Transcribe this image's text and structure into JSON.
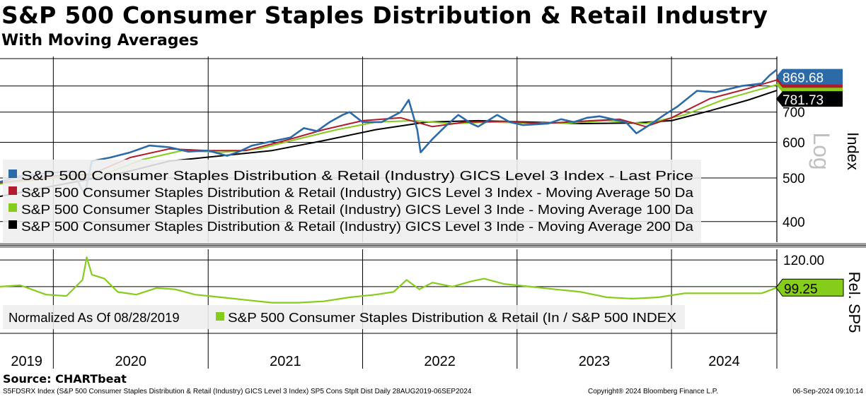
{
  "title": "S&P 500 Consumer Staples Distribution & Retail Industry",
  "subtitle": "With Moving Averages",
  "source": "Source: CHARTbeat",
  "footer": {
    "left": "S5FDSRX Index (S&P 500 Consumer Staples Distribution & Retail (Industry) GICS Level 3 Index) SP5 Cons Stplt Dist  Daily 28AUG2019-06SEP2024",
    "center": "Copyright® 2024 Bloomberg Finance L.P.",
    "right": "06-Sep-2024 09:10:14"
  },
  "colors": {
    "last_price": "#2c6aa8",
    "ma50": "#b01c2e",
    "ma100": "#86cc1a",
    "ma200": "#000000",
    "relative": "#86cc1a",
    "grid": "#000000"
  },
  "chart_data": [
    {
      "type": "line",
      "panel": "upper",
      "scale": "log",
      "ylim": [
        360,
        930
      ],
      "ylabel": "Index",
      "scale_label": "Log",
      "yticks": [
        400,
        500,
        600,
        700,
        800
      ],
      "grid": true,
      "legend_position": "left",
      "x_start": "2019-08-28",
      "x_end": "2024-09-06",
      "x_tick_labels": [
        "2019",
        "2020",
        "2021",
        "2022",
        "2023",
        "2024"
      ],
      "x_year_boundaries": [
        "2020-01-01",
        "2021-01-01",
        "2022-01-01",
        "2023-01-01",
        "2024-01-01"
      ],
      "series": [
        {
          "name": "S&P 500 Consumer Staples Distribution & Retail (Industry) GICS Level 3 Index - Last Price",
          "color": "#2c6aa8",
          "last_value_label": "869.68",
          "points": [
            [
              "2019-08-28",
              490
            ],
            [
              "2019-10-15",
              505
            ],
            [
              "2019-12-15",
              512
            ],
            [
              "2020-02-15",
              518
            ],
            [
              "2020-03-15",
              460
            ],
            [
              "2020-04-01",
              545
            ],
            [
              "2020-05-15",
              555
            ],
            [
              "2020-07-01",
              570
            ],
            [
              "2020-08-15",
              590
            ],
            [
              "2020-10-01",
              585
            ],
            [
              "2020-11-15",
              572
            ],
            [
              "2021-01-01",
              575
            ],
            [
              "2021-02-15",
              560
            ],
            [
              "2021-03-15",
              572
            ],
            [
              "2021-04-15",
              590
            ],
            [
              "2021-06-01",
              603
            ],
            [
              "2021-07-15",
              615
            ],
            [
              "2021-08-15",
              645
            ],
            [
              "2021-09-15",
              635
            ],
            [
              "2021-10-15",
              665
            ],
            [
              "2021-11-15",
              690
            ],
            [
              "2021-12-01",
              700
            ],
            [
              "2022-01-01",
              665
            ],
            [
              "2022-02-15",
              665
            ],
            [
              "2022-04-01",
              700
            ],
            [
              "2022-04-20",
              745
            ],
            [
              "2022-05-10",
              640
            ],
            [
              "2022-05-18",
              570
            ],
            [
              "2022-06-15",
              610
            ],
            [
              "2022-07-15",
              650
            ],
            [
              "2022-08-15",
              690
            ],
            [
              "2022-09-15",
              660
            ],
            [
              "2022-10-01",
              650
            ],
            [
              "2022-11-15",
              690
            ],
            [
              "2022-12-15",
              665
            ],
            [
              "2023-01-15",
              655
            ],
            [
              "2023-03-15",
              660
            ],
            [
              "2023-04-15",
              675
            ],
            [
              "2023-05-15",
              665
            ],
            [
              "2023-06-15",
              680
            ],
            [
              "2023-07-15",
              685
            ],
            [
              "2023-08-15",
              675
            ],
            [
              "2023-09-15",
              665
            ],
            [
              "2023-10-10",
              628
            ],
            [
              "2023-11-15",
              660
            ],
            [
              "2023-12-15",
              690
            ],
            [
              "2024-01-15",
              720
            ],
            [
              "2024-03-01",
              780
            ],
            [
              "2024-04-15",
              775
            ],
            [
              "2024-06-15",
              800
            ],
            [
              "2024-08-01",
              810
            ],
            [
              "2024-08-20",
              845
            ],
            [
              "2024-09-06",
              869.68
            ]
          ]
        },
        {
          "name": "S&P 500 Consumer Staples Distribution & Retail (Industry) GICS Level 3 Index - Moving Average 50 Da",
          "color": "#b01c2e",
          "last_value_label": "",
          "points": [
            [
              "2019-08-28",
              488
            ],
            [
              "2020-01-01",
              505
            ],
            [
              "2020-04-01",
              510
            ],
            [
              "2020-07-01",
              555
            ],
            [
              "2020-10-01",
              580
            ],
            [
              "2021-01-01",
              575
            ],
            [
              "2021-04-01",
              575
            ],
            [
              "2021-07-01",
              605
            ],
            [
              "2021-10-01",
              640
            ],
            [
              "2022-01-01",
              670
            ],
            [
              "2022-04-01",
              680
            ],
            [
              "2022-06-15",
              650
            ],
            [
              "2022-09-01",
              665
            ],
            [
              "2022-12-01",
              668
            ],
            [
              "2023-03-01",
              660
            ],
            [
              "2023-06-01",
              668
            ],
            [
              "2023-09-01",
              675
            ],
            [
              "2023-11-01",
              650
            ],
            [
              "2024-01-01",
              680
            ],
            [
              "2024-04-01",
              750
            ],
            [
              "2024-07-01",
              790
            ],
            [
              "2024-09-06",
              825
            ]
          ]
        },
        {
          "name": "S&P 500 Consumer Staples Distribution & Retail (Industry) GICS Level 3 Inde - Moving Average 100 Da",
          "color": "#86cc1a",
          "last_value_label": "",
          "points": [
            [
              "2019-08-28",
              485
            ],
            [
              "2020-01-01",
              500
            ],
            [
              "2020-05-01",
              510
            ],
            [
              "2020-08-01",
              550
            ],
            [
              "2020-11-01",
              575
            ],
            [
              "2021-02-01",
              570
            ],
            [
              "2021-05-01",
              580
            ],
            [
              "2021-08-01",
              610
            ],
            [
              "2021-11-01",
              640
            ],
            [
              "2022-02-01",
              665
            ],
            [
              "2022-05-01",
              670
            ],
            [
              "2022-08-01",
              660
            ],
            [
              "2022-11-01",
              665
            ],
            [
              "2023-02-01",
              662
            ],
            [
              "2023-05-01",
              662
            ],
            [
              "2023-08-01",
              670
            ],
            [
              "2023-11-01",
              660
            ],
            [
              "2024-02-01",
              690
            ],
            [
              "2024-05-01",
              745
            ],
            [
              "2024-07-15",
              780
            ],
            [
              "2024-09-06",
              805
            ]
          ]
        },
        {
          "name": "S&P 500 Consumer Staples Distribution & Retail (Industry) GICS Level 3 Inde - Moving Average 200 Da",
          "color": "#000000",
          "last_value_label": "781.73",
          "points": [
            [
              "2019-08-28",
              455
            ],
            [
              "2020-01-01",
              480
            ],
            [
              "2020-06-01",
              510
            ],
            [
              "2020-10-01",
              545
            ],
            [
              "2021-02-01",
              560
            ],
            [
              "2021-06-01",
              575
            ],
            [
              "2021-10-01",
              605
            ],
            [
              "2022-02-01",
              640
            ],
            [
              "2022-06-01",
              665
            ],
            [
              "2022-10-01",
              670
            ],
            [
              "2023-02-01",
              665
            ],
            [
              "2023-06-01",
              660
            ],
            [
              "2023-10-01",
              662
            ],
            [
              "2024-01-01",
              670
            ],
            [
              "2024-04-01",
              705
            ],
            [
              "2024-07-01",
              745
            ],
            [
              "2024-09-06",
              781.73
            ]
          ]
        }
      ]
    },
    {
      "type": "line",
      "panel": "lower",
      "ylim": [
        65,
        128
      ],
      "ylabel": "Rel. SP5",
      "yticks": [
        120
      ],
      "ytick_labels": [
        "120.00"
      ],
      "grid": true,
      "note": "Normalized As Of 08/28/2019",
      "series": [
        {
          "name": "S&P 500 Consumer Staples Distribution & Retail (In / S&P 500 INDEX",
          "color": "#86cc1a",
          "last_value_label": "99.25",
          "points": [
            [
              "2019-08-28",
              100
            ],
            [
              "2019-10-15",
              101
            ],
            [
              "2019-12-15",
              94
            ],
            [
              "2020-02-01",
              93
            ],
            [
              "2020-03-10",
              105
            ],
            [
              "2020-03-20",
              122
            ],
            [
              "2020-04-01",
              109
            ],
            [
              "2020-05-01",
              106
            ],
            [
              "2020-06-01",
              96
            ],
            [
              "2020-07-15",
              94
            ],
            [
              "2020-09-01",
              99
            ],
            [
              "2020-10-15",
              98
            ],
            [
              "2020-12-01",
              94
            ],
            [
              "2021-02-01",
              92
            ],
            [
              "2021-04-01",
              90
            ],
            [
              "2021-06-01",
              88
            ],
            [
              "2021-08-01",
              88
            ],
            [
              "2021-10-01",
              89
            ],
            [
              "2021-12-01",
              92
            ],
            [
              "2022-02-01",
              94
            ],
            [
              "2022-03-15",
              96
            ],
            [
              "2022-04-15",
              105
            ],
            [
              "2022-05-15",
              98
            ],
            [
              "2022-06-15",
              103
            ],
            [
              "2022-08-01",
              100
            ],
            [
              "2022-09-15",
              104
            ],
            [
              "2022-10-15",
              106
            ],
            [
              "2022-12-01",
              102
            ],
            [
              "2023-02-01",
              100
            ],
            [
              "2023-04-01",
              98
            ],
            [
              "2023-06-01",
              96
            ],
            [
              "2023-08-01",
              92
            ],
            [
              "2023-10-01",
              91
            ],
            [
              "2023-12-01",
              92
            ],
            [
              "2024-02-01",
              95
            ],
            [
              "2024-04-01",
              95
            ],
            [
              "2024-06-01",
              95
            ],
            [
              "2024-08-01",
              95
            ],
            [
              "2024-09-06",
              99.25
            ]
          ]
        }
      ]
    }
  ]
}
